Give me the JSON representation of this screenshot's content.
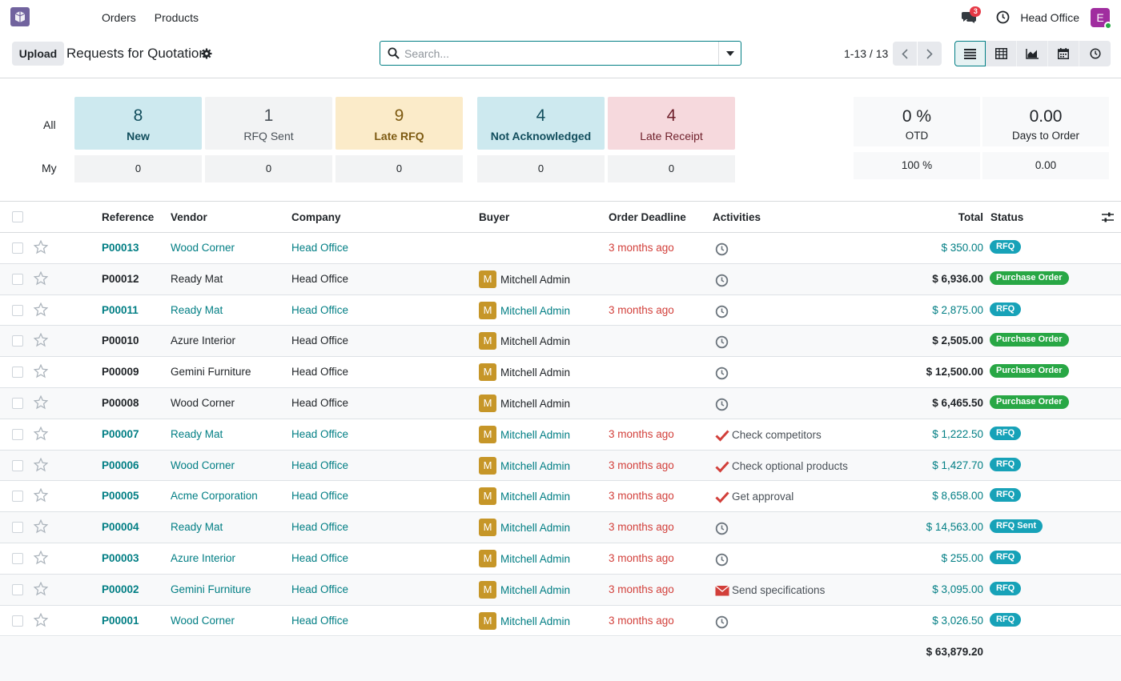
{
  "navbar": {
    "menu": [
      "Orders",
      "Products"
    ],
    "chat_count": "3",
    "company": "Head Office",
    "avatar_letter": "E"
  },
  "control": {
    "upload_label": "Upload",
    "title": "Requests for Quotation",
    "search_placeholder": "Search...",
    "pager": "1-13 / 13"
  },
  "dashboard": {
    "all_label": "All",
    "my_label": "My",
    "tiles": [
      {
        "num": "8",
        "label": "New",
        "my": "0"
      },
      {
        "num": "1",
        "label": "RFQ Sent",
        "my": "0"
      },
      {
        "num": "9",
        "label": "Late RFQ",
        "my": "0"
      },
      {
        "num": "4",
        "label": "Not Acknowledged",
        "my": "0"
      },
      {
        "num": "4",
        "label": "Late Receipt",
        "my": "0"
      }
    ],
    "kpis": [
      {
        "num": "0 %",
        "label": "OTD",
        "my": "100 %"
      },
      {
        "num": "0.00",
        "label": "Days to Order",
        "my": "0.00"
      }
    ]
  },
  "table": {
    "headers": [
      "Reference",
      "Vendor",
      "Company",
      "Buyer",
      "Order Deadline",
      "Activities",
      "Total",
      "Status"
    ],
    "rows": [
      {
        "ref": "P00013",
        "vendor": "Wood Corner",
        "company": "Head Office",
        "buyer": "",
        "deadline": "3 months ago",
        "activity": "",
        "activity_icon": "clock",
        "total": "$ 350.00",
        "status": "RFQ",
        "is_rfq": true
      },
      {
        "ref": "P00012",
        "vendor": "Ready Mat",
        "company": "Head Office",
        "buyer": "Mitchell Admin",
        "deadline": "",
        "activity": "",
        "activity_icon": "clock",
        "total": "$ 6,936.00",
        "status": "Purchase Order",
        "is_rfq": false
      },
      {
        "ref": "P00011",
        "vendor": "Ready Mat",
        "company": "Head Office",
        "buyer": "Mitchell Admin",
        "deadline": "3 months ago",
        "activity": "",
        "activity_icon": "clock",
        "total": "$ 2,875.00",
        "status": "RFQ",
        "is_rfq": true
      },
      {
        "ref": "P00010",
        "vendor": "Azure Interior",
        "company": "Head Office",
        "buyer": "Mitchell Admin",
        "deadline": "",
        "activity": "",
        "activity_icon": "clock",
        "total": "$ 2,505.00",
        "status": "Purchase Order",
        "is_rfq": false
      },
      {
        "ref": "P00009",
        "vendor": "Gemini Furniture",
        "company": "Head Office",
        "buyer": "Mitchell Admin",
        "deadline": "",
        "activity": "",
        "activity_icon": "clock",
        "total": "$ 12,500.00",
        "status": "Purchase Order",
        "is_rfq": false
      },
      {
        "ref": "P00008",
        "vendor": "Wood Corner",
        "company": "Head Office",
        "buyer": "Mitchell Admin",
        "deadline": "",
        "activity": "",
        "activity_icon": "clock",
        "total": "$ 6,465.50",
        "status": "Purchase Order",
        "is_rfq": false
      },
      {
        "ref": "P00007",
        "vendor": "Ready Mat",
        "company": "Head Office",
        "buyer": "Mitchell Admin",
        "deadline": "3 months ago",
        "activity": "Check competitors",
        "activity_icon": "check",
        "total": "$ 1,222.50",
        "status": "RFQ",
        "is_rfq": true
      },
      {
        "ref": "P00006",
        "vendor": "Wood Corner",
        "company": "Head Office",
        "buyer": "Mitchell Admin",
        "deadline": "3 months ago",
        "activity": "Check optional products",
        "activity_icon": "check",
        "total": "$ 1,427.70",
        "status": "RFQ",
        "is_rfq": true
      },
      {
        "ref": "P00005",
        "vendor": "Acme Corporation",
        "company": "Head Office",
        "buyer": "Mitchell Admin",
        "deadline": "3 months ago",
        "activity": "Get approval",
        "activity_icon": "check",
        "total": "$ 8,658.00",
        "status": "RFQ",
        "is_rfq": true
      },
      {
        "ref": "P00004",
        "vendor": "Ready Mat",
        "company": "Head Office",
        "buyer": "Mitchell Admin",
        "deadline": "3 months ago",
        "activity": "",
        "activity_icon": "clock",
        "total": "$ 14,563.00",
        "status": "RFQ Sent",
        "is_rfq": true
      },
      {
        "ref": "P00003",
        "vendor": "Azure Interior",
        "company": "Head Office",
        "buyer": "Mitchell Admin",
        "deadline": "3 months ago",
        "activity": "",
        "activity_icon": "clock",
        "total": "$ 255.00",
        "status": "RFQ",
        "is_rfq": true
      },
      {
        "ref": "P00002",
        "vendor": "Gemini Furniture",
        "company": "Head Office",
        "buyer": "Mitchell Admin",
        "deadline": "3 months ago",
        "activity": "Send specifications",
        "activity_icon": "envelope",
        "total": "$ 3,095.00",
        "status": "RFQ",
        "is_rfq": true
      },
      {
        "ref": "P00001",
        "vendor": "Wood Corner",
        "company": "Head Office",
        "buyer": "Mitchell Admin",
        "deadline": "3 months ago",
        "activity": "",
        "activity_icon": "clock",
        "total": "$ 3,026.50",
        "status": "RFQ",
        "is_rfq": true
      }
    ],
    "grand_total": "$ 63,879.20"
  },
  "colors": {
    "brand": "#71639e",
    "link": "#017e84",
    "danger_text": "#d23f3a",
    "rfq_badge": "#17a2b8",
    "po_badge": "#28a745",
    "avatar": "#c69628"
  }
}
